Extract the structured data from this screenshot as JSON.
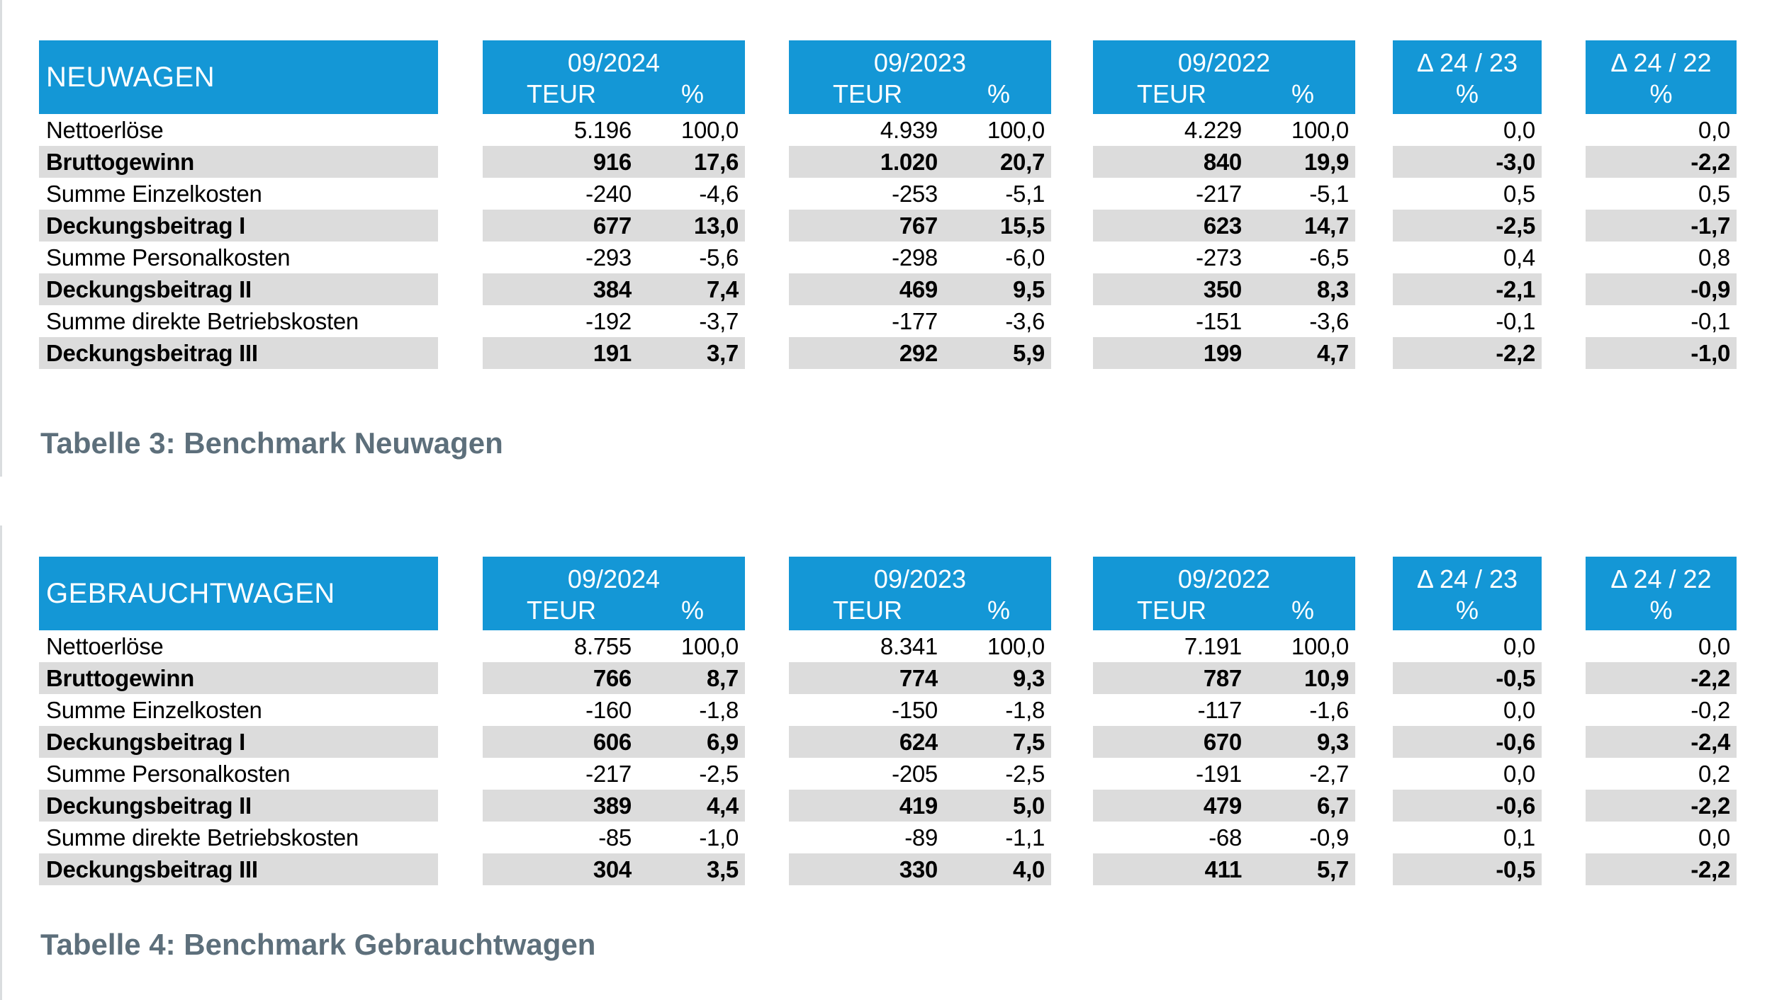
{
  "colors": {
    "header_bg": "#1497d6",
    "alt_row_bg": "#dcdcdc",
    "caption_text": "#5d6f7b",
    "header_text": "#ffffff",
    "body_text": "#000000",
    "boundary_line": "#dadddf"
  },
  "column_groups": {
    "periods": [
      {
        "label": "09/2024",
        "sub_left": "TEUR",
        "sub_right": "%"
      },
      {
        "label": "09/2023",
        "sub_left": "TEUR",
        "sub_right": "%"
      },
      {
        "label": "09/2022",
        "sub_left": "TEUR",
        "sub_right": "%"
      }
    ],
    "deltas": [
      {
        "label": "Δ 24 / 23",
        "sub": "%"
      },
      {
        "label": "Δ 24 / 22",
        "sub": "%"
      }
    ]
  },
  "tables": [
    {
      "title": "NEUWAGEN",
      "caption": "Tabelle 3: Benchmark Neuwagen",
      "rows": [
        {
          "label": "Nettoerlöse",
          "emphasis": false,
          "values": [
            "5.196",
            "100,0",
            "4.939",
            "100,0",
            "4.229",
            "100,0",
            "0,0",
            "0,0"
          ]
        },
        {
          "label": "Bruttogewinn",
          "emphasis": true,
          "values": [
            "916",
            "17,6",
            "1.020",
            "20,7",
            "840",
            "19,9",
            "-3,0",
            "-2,2"
          ]
        },
        {
          "label": "Summe Einzelkosten",
          "emphasis": false,
          "values": [
            "-240",
            "-4,6",
            "-253",
            "-5,1",
            "-217",
            "-5,1",
            "0,5",
            "0,5"
          ]
        },
        {
          "label": "Deckungsbeitrag I",
          "emphasis": true,
          "values": [
            "677",
            "13,0",
            "767",
            "15,5",
            "623",
            "14,7",
            "-2,5",
            "-1,7"
          ]
        },
        {
          "label": "Summe Personalkosten",
          "emphasis": false,
          "values": [
            "-293",
            "-5,6",
            "-298",
            "-6,0",
            "-273",
            "-6,5",
            "0,4",
            "0,8"
          ]
        },
        {
          "label": "Deckungsbeitrag II",
          "emphasis": true,
          "values": [
            "384",
            "7,4",
            "469",
            "9,5",
            "350",
            "8,3",
            "-2,1",
            "-0,9"
          ]
        },
        {
          "label": "Summe direkte Betriebskosten",
          "emphasis": false,
          "values": [
            "-192",
            "-3,7",
            "-177",
            "-3,6",
            "-151",
            "-3,6",
            "-0,1",
            "-0,1"
          ]
        },
        {
          "label": "Deckungsbeitrag III",
          "emphasis": true,
          "values": [
            "191",
            "3,7",
            "292",
            "5,9",
            "199",
            "4,7",
            "-2,2",
            "-1,0"
          ]
        }
      ]
    },
    {
      "title": "GEBRAUCHTWAGEN",
      "caption": "Tabelle 4: Benchmark Gebrauchtwagen",
      "rows": [
        {
          "label": "Nettoerlöse",
          "emphasis": false,
          "values": [
            "8.755",
            "100,0",
            "8.341",
            "100,0",
            "7.191",
            "100,0",
            "0,0",
            "0,0"
          ]
        },
        {
          "label": "Bruttogewinn",
          "emphasis": true,
          "values": [
            "766",
            "8,7",
            "774",
            "9,3",
            "787",
            "10,9",
            "-0,5",
            "-2,2"
          ]
        },
        {
          "label": "Summe Einzelkosten",
          "emphasis": false,
          "values": [
            "-160",
            "-1,8",
            "-150",
            "-1,8",
            "-117",
            "-1,6",
            "0,0",
            "-0,2"
          ]
        },
        {
          "label": "Deckungsbeitrag I",
          "emphasis": true,
          "values": [
            "606",
            "6,9",
            "624",
            "7,5",
            "670",
            "9,3",
            "-0,6",
            "-2,4"
          ]
        },
        {
          "label": "Summe Personalkosten",
          "emphasis": false,
          "values": [
            "-217",
            "-2,5",
            "-205",
            "-2,5",
            "-191",
            "-2,7",
            "0,0",
            "0,2"
          ]
        },
        {
          "label": "Deckungsbeitrag II",
          "emphasis": true,
          "values": [
            "389",
            "4,4",
            "419",
            "5,0",
            "479",
            "6,7",
            "-0,6",
            "-2,2"
          ]
        },
        {
          "label": "Summe direkte Betriebskosten",
          "emphasis": false,
          "values": [
            "-85",
            "-1,0",
            "-89",
            "-1,1",
            "-68",
            "-0,9",
            "0,1",
            "0,0"
          ]
        },
        {
          "label": "Deckungsbeitrag III",
          "emphasis": true,
          "values": [
            "304",
            "3,5",
            "330",
            "4,0",
            "411",
            "5,7",
            "-0,5",
            "-2,2"
          ]
        }
      ]
    }
  ]
}
